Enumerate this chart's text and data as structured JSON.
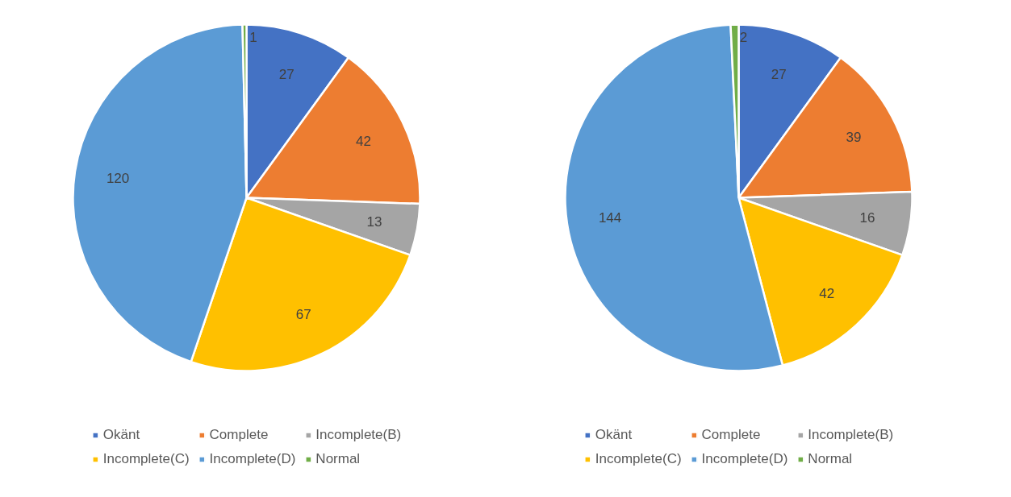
{
  "chart_data": [
    {
      "type": "pie",
      "categories": [
        "Okänt",
        "Complete",
        "Incomplete(B)",
        "Incomplete(C)",
        "Incomplete(D)",
        "Normal"
      ],
      "values": [
        27,
        42,
        13,
        67,
        120,
        1
      ],
      "colors": [
        "#4472c4",
        "#ed7d31",
        "#a5a5a5",
        "#ffc000",
        "#5b9bd5",
        "#70ad47"
      ],
      "data_labels": true,
      "legend": "bottom"
    },
    {
      "type": "pie",
      "categories": [
        "Okänt",
        "Complete",
        "Incomplete(B)",
        "Incomplete(C)",
        "Incomplete(D)",
        "Normal"
      ],
      "values": [
        27,
        39,
        16,
        42,
        144,
        2
      ],
      "colors": [
        "#4472c4",
        "#ed7d31",
        "#a5a5a5",
        "#ffc000",
        "#5b9bd5",
        "#70ad47"
      ],
      "data_labels": true,
      "legend": "bottom"
    }
  ]
}
